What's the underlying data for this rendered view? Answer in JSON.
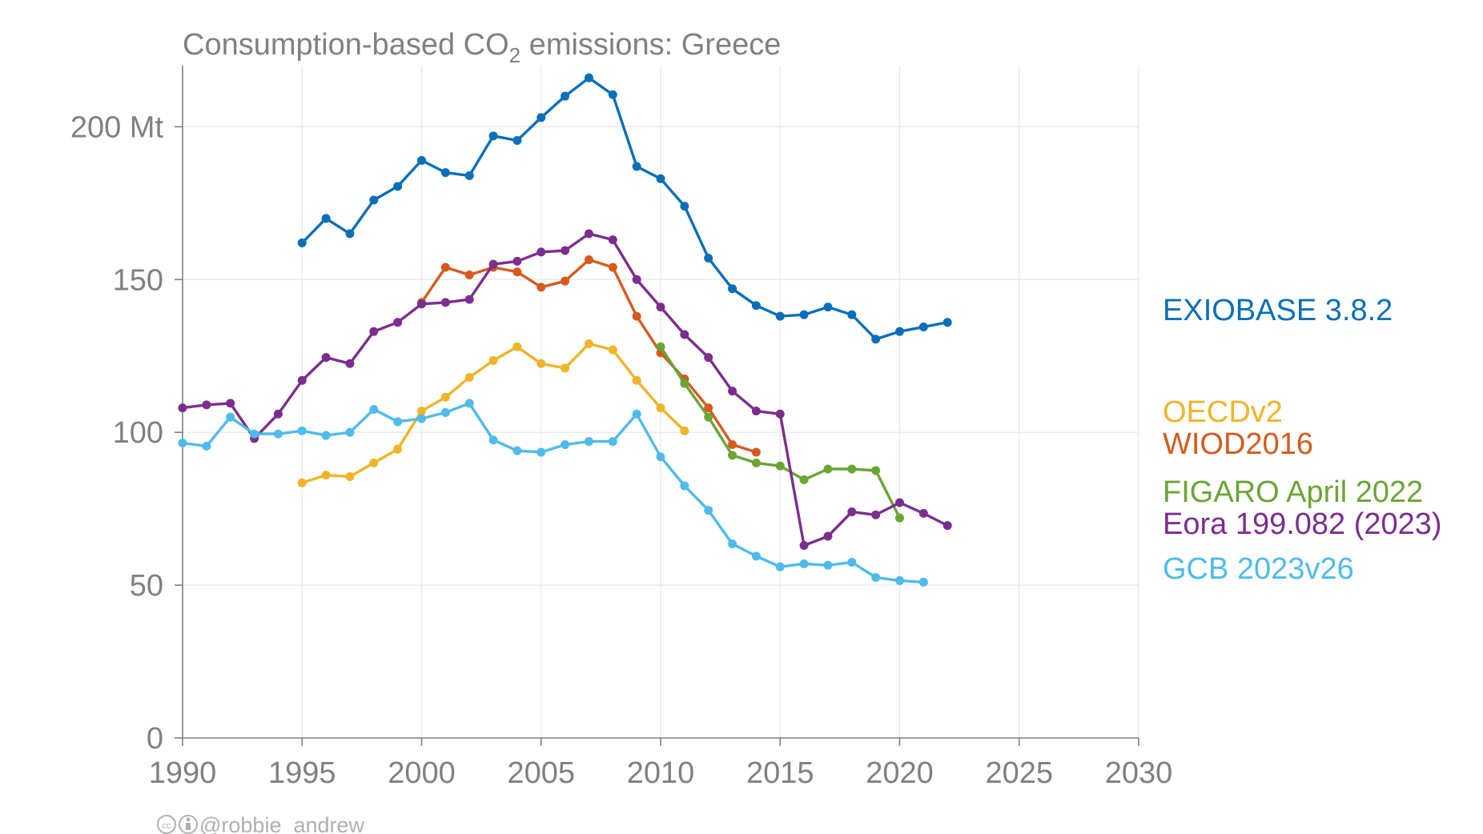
{
  "chart_data": {
    "type": "line",
    "title": "Consumption-based CO₂ emissions: Greece",
    "title_main": "Consumption-based CO",
    "title_sub": "2",
    "title_rest": " emissions: Greece",
    "xlim": [
      1990,
      2030
    ],
    "ylim": [
      0,
      220
    ],
    "x_ticks": [
      1990,
      1995,
      2000,
      2005,
      2010,
      2015,
      2020,
      2025,
      2030
    ],
    "y_ticks": [
      {
        "value": 0,
        "label": "0"
      },
      {
        "value": 50,
        "label": "50"
      },
      {
        "value": 100,
        "label": "100"
      },
      {
        "value": 150,
        "label": "150"
      },
      {
        "value": 200,
        "label": "200 Mt"
      }
    ],
    "grid": true,
    "legend_placement": "right, at line ends",
    "series": [
      {
        "name": "EXIOBASE 3.8.2",
        "color": "#0a6fb8",
        "x": [
          1995,
          1996,
          1997,
          1998,
          1999,
          2000,
          2001,
          2002,
          2003,
          2004,
          2005,
          2006,
          2007,
          2008,
          2009,
          2010,
          2011,
          2012,
          2013,
          2014,
          2015,
          2016,
          2017,
          2018,
          2019,
          2020,
          2021,
          2022
        ],
        "values": [
          162,
          170,
          165,
          176,
          180.5,
          189,
          185,
          184,
          197,
          195.5,
          203,
          210,
          216,
          210.5,
          187,
          183,
          174,
          157,
          147,
          141.5,
          138,
          138.5,
          141,
          138.5,
          130.5,
          133,
          134.5,
          136
        ]
      },
      {
        "name": "OECDv2",
        "color": "#f0b429",
        "x": [
          1995,
          1996,
          1997,
          1998,
          1999,
          2000,
          2001,
          2002,
          2003,
          2004,
          2005,
          2006,
          2007,
          2008,
          2009,
          2010,
          2011
        ],
        "values": [
          83.5,
          86,
          85.5,
          90,
          94.5,
          107,
          111.5,
          118,
          123.5,
          128,
          122.5,
          121,
          129,
          127,
          117,
          108,
          100.5
        ]
      },
      {
        "name": "WIOD2016",
        "color": "#d65a1e",
        "x": [
          2000,
          2001,
          2002,
          2003,
          2004,
          2005,
          2006,
          2007,
          2008,
          2009,
          2010,
          2011,
          2012,
          2013,
          2014
        ],
        "values": [
          142.5,
          154,
          151.5,
          154,
          152.5,
          147.5,
          149.5,
          156.5,
          154,
          138,
          126,
          117.5,
          108,
          96,
          93.5
        ]
      },
      {
        "name": "FIGARO April 2022",
        "color": "#6aa535",
        "x": [
          2010,
          2011,
          2012,
          2013,
          2014,
          2015,
          2016,
          2017,
          2018,
          2019,
          2020
        ],
        "values": [
          128,
          116,
          105,
          92.5,
          90,
          89,
          84.5,
          88,
          88,
          87.5,
          72
        ]
      },
      {
        "name": "Eora 199.082 (2023)",
        "color": "#7b2e8e",
        "x": [
          1990,
          1991,
          1992,
          1993,
          1994,
          1995,
          1996,
          1997,
          1998,
          1999,
          2000,
          2001,
          2002,
          2003,
          2004,
          2005,
          2006,
          2007,
          2008,
          2009,
          2010,
          2011,
          2012,
          2013,
          2014,
          2015,
          2016,
          2017,
          2018,
          2019,
          2020,
          2021,
          2022
        ],
        "values": [
          108,
          109,
          109.5,
          98,
          106,
          117,
          124.5,
          122.5,
          133,
          136,
          142,
          142.5,
          143.5,
          155,
          156,
          159,
          159.5,
          165,
          163,
          150,
          141,
          132,
          124.5,
          113.5,
          107,
          106,
          63,
          66,
          74,
          73,
          77,
          73.5,
          69.5
        ]
      },
      {
        "name": "GCB 2023v26",
        "color": "#4fbbea",
        "x": [
          1990,
          1991,
          1992,
          1993,
          1994,
          1995,
          1996,
          1997,
          1998,
          1999,
          2000,
          2001,
          2002,
          2003,
          2004,
          2005,
          2006,
          2007,
          2008,
          2009,
          2010,
          2011,
          2012,
          2013,
          2014,
          2015,
          2016,
          2017,
          2018,
          2019,
          2020,
          2021
        ],
        "values": [
          96.5,
          95.5,
          105,
          99.5,
          99.5,
          100.5,
          99,
          100,
          107.5,
          103.5,
          104.5,
          106.5,
          109.5,
          97.5,
          94,
          93.5,
          96,
          97,
          97,
          106,
          92,
          82.5,
          74.5,
          63.5,
          59.5,
          56,
          57,
          56.5,
          57.5,
          52.5,
          51.5,
          51
        ]
      }
    ],
    "credit": "@robbie_andrew"
  }
}
